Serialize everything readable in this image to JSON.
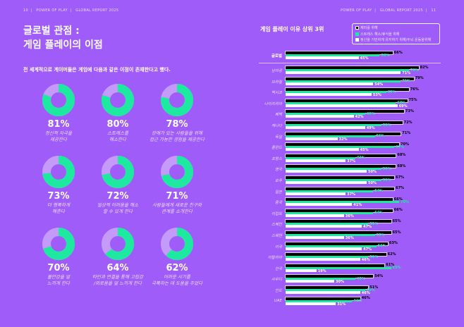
{
  "header_left": {
    "page": "10",
    "brand": "POWER OF PLAY",
    "report": "GLOBAL REPORT 2025"
  },
  "header_right": {
    "page": "11",
    "brand": "POWER OF PLAY",
    "report": "GLOBAL REPORT 2025"
  },
  "title_line1": "글로벌 관점 :",
  "title_line2": "게임 플레이의 이점",
  "subtitle": "전 세계적으로 게이머들은 게임에 다음과 같은 이점이 존재한다고 했다.",
  "colors": {
    "background": "#a05cf9",
    "green": "#1de9a0",
    "light_purple": "#c49afb",
    "black": "#000000",
    "white": "#ffffff"
  },
  "benefits": [
    {
      "pct": "81%",
      "value": 81,
      "line1": "정신적 자극을",
      "line2": "제공한다"
    },
    {
      "pct": "80%",
      "value": 80,
      "line1": "스트레스를",
      "line2": "해소한다"
    },
    {
      "pct": "78%",
      "value": 78,
      "line1": "장애가 있는 사람들을 위해",
      "line2": "접근 가능한 경험을 제공한다"
    },
    {
      "pct": "73%",
      "value": 73,
      "line1": "더 행복하게",
      "line2": "해준다"
    },
    {
      "pct": "72%",
      "value": 72,
      "line1": "일상적 어려움을 해소",
      "line2": "할 수 있게 한다"
    },
    {
      "pct": "71%",
      "value": 71,
      "line1": "사람들에게 새로운 친구와",
      "line2": "관계를 소개한다"
    },
    {
      "pct": "70%",
      "value": 70,
      "line1": "불안감을 덜",
      "line2": "느끼게 한다"
    },
    {
      "pct": "64%",
      "value": 64,
      "line1": "타인과 연결을 통해 고립감",
      "line2": "/외로움을 덜 느끼게 한다"
    },
    {
      "pct": "62%",
      "value": 62,
      "line1": "어려운 시기를",
      "line2": "극복하는 데 도움을 주었다"
    }
  ],
  "chart_data": {
    "type": "bar",
    "orientation": "horizontal",
    "title": "게임 플레이 이유 상위 3위",
    "legend_position": "top-right",
    "unit": "%",
    "series": [
      {
        "name": "재미를 위해",
        "color": "#000000"
      },
      {
        "name": "스트레스 해소/휴식을 위해",
        "color": "#1de9a0"
      },
      {
        "name": "정신을 기민하게 유지하기 위해/두뇌 운동을위해",
        "color": "#ffffff"
      }
    ],
    "categories": [
      "글로벌",
      "남아공",
      "브라질",
      "멕시코",
      "나이지리아",
      "퀘벡",
      "캐나다",
      "독일",
      "폴란드",
      "프랑스",
      "영국",
      "호주",
      "일본",
      "중국",
      "이집트",
      "스페인",
      "스웨덴",
      "미국",
      "이탈리아",
      "한국",
      "사우디",
      "인도",
      "UAE"
    ],
    "values": [
      [
        66,
        58,
        45
      ],
      [
        82,
        76,
        71
      ],
      [
        79,
        71,
        54
      ],
      [
        76,
        62,
        53
      ],
      [
        75,
        68,
        69
      ],
      [
        73,
        49,
        42
      ],
      [
        72,
        59,
        49
      ],
      [
        71,
        55,
        32
      ],
      [
        70,
        67,
        45
      ],
      [
        68,
        43,
        37
      ],
      [
        68,
        59,
        50
      ],
      [
        67,
        59,
        50
      ],
      [
        67,
        54,
        37
      ],
      [
        66,
        70,
        41
      ],
      [
        66,
        54,
        36
      ],
      [
        65,
        51,
        47
      ],
      [
        65,
        55,
        36
      ],
      [
        63,
        56,
        47
      ],
      [
        62,
        51,
        46
      ],
      [
        61,
        65,
        19
      ],
      [
        54,
        43,
        30
      ],
      [
        51,
        49,
        46
      ],
      [
        46,
        41,
        31
      ]
    ]
  }
}
